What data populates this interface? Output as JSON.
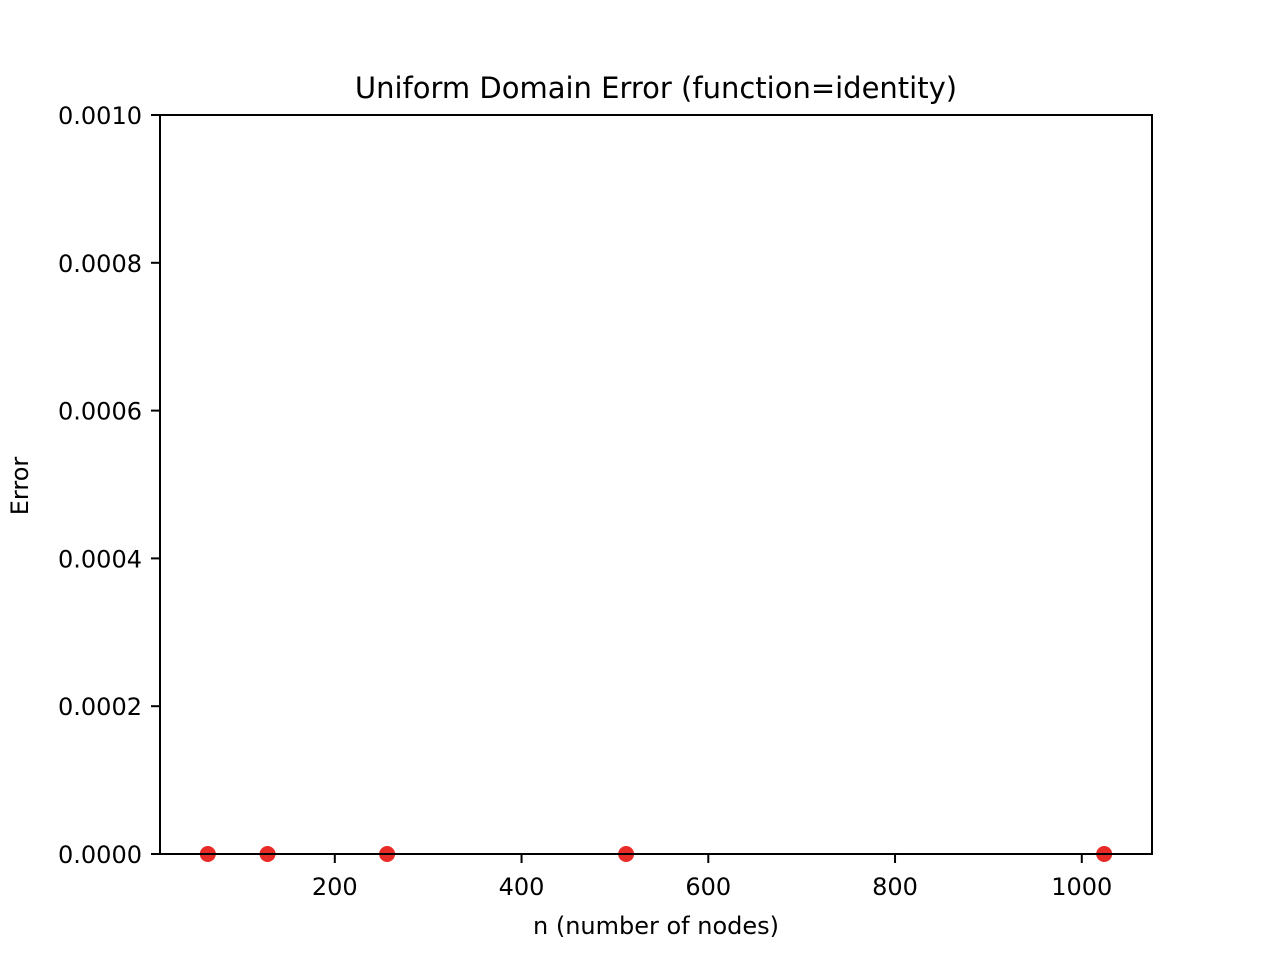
{
  "chart_data": {
    "type": "scatter",
    "title": "Uniform Domain Error (function=identity)",
    "xlabel": "n (number of nodes)",
    "ylabel": "Error",
    "xlim": [
      12.8,
      1075.2
    ],
    "ylim": [
      0.0,
      0.001
    ],
    "xticks": [
      200,
      400,
      600,
      800,
      1000
    ],
    "xtick_labels": [
      "200",
      "400",
      "600",
      "800",
      "1000"
    ],
    "yticks": [
      0.0,
      0.0002,
      0.0004,
      0.0006,
      0.0008,
      0.001
    ],
    "ytick_labels": [
      "0.0000",
      "0.0002",
      "0.0004",
      "0.0006",
      "0.0008",
      "0.0010"
    ],
    "grid": false,
    "series": [
      {
        "color": "#e8201c",
        "x": [
          64,
          128,
          256,
          512,
          1024
        ],
        "y": [
          0.0,
          0.0,
          0.0,
          0.0,
          0.0
        ]
      }
    ]
  }
}
